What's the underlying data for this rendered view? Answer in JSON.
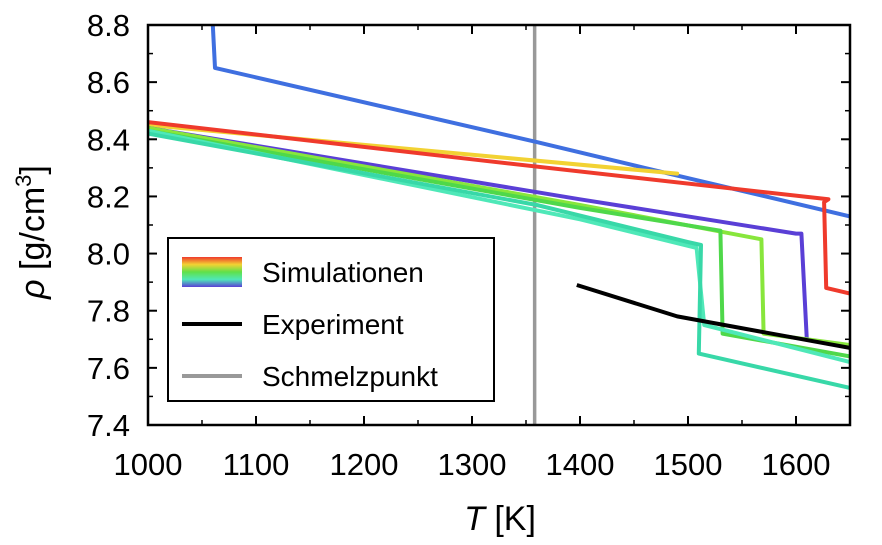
{
  "chart_data": {
    "type": "line",
    "xlabel": {
      "symbol": "T",
      "unit": "[K]"
    },
    "ylabel": {
      "symbol": "ρ",
      "unit_before": "[g/cm",
      "unit_sup": "3",
      "unit_after": "]"
    },
    "xlim": [
      1000,
      1650
    ],
    "ylim": [
      7.4,
      8.8
    ],
    "xticks": [
      1000,
      1100,
      1200,
      1300,
      1400,
      1500,
      1600
    ],
    "yticks": [
      7.4,
      7.6,
      7.8,
      8.0,
      8.2,
      8.4,
      8.6,
      8.8
    ],
    "xtick_labels": [
      "1000",
      "1100",
      "1200",
      "1300",
      "1400",
      "1500",
      "1600"
    ],
    "ytick_labels": [
      "7.4",
      "7.6",
      "7.8",
      "8.0",
      "8.2",
      "8.4",
      "8.6",
      "8.8"
    ],
    "grid": false,
    "legend_position": "bottom-left",
    "legend": [
      {
        "label": "Simulationen",
        "kind": "rainbow"
      },
      {
        "label": "Experiment",
        "kind": "line",
        "color": "#000000"
      },
      {
        "label": "Schmelzpunkt",
        "kind": "line",
        "color": "#999999"
      }
    ],
    "melting_point": {
      "x": 1358,
      "color": "#999999"
    },
    "experiment": {
      "color": "#000000",
      "points": [
        [
          1397,
          7.89
        ],
        [
          1490,
          7.78
        ],
        [
          1650,
          7.67
        ]
      ]
    },
    "simulations": [
      {
        "color": "#3f6fe0",
        "points": [
          [
            1060,
            8.8
          ],
          [
            1062,
            8.65
          ],
          [
            1360,
            8.39
          ],
          [
            1460,
            8.3
          ],
          [
            1650,
            8.13
          ]
        ]
      },
      {
        "color": "#f2d233",
        "points": [
          [
            1000,
            8.45
          ],
          [
            1490,
            8.28
          ]
        ]
      },
      {
        "color": "#ef3a2c",
        "points": [
          [
            1000,
            8.46
          ],
          [
            1300,
            8.33
          ],
          [
            1630,
            8.19
          ],
          [
            1626,
            8.18
          ],
          [
            1628,
            7.88
          ],
          [
            1650,
            7.86
          ]
        ]
      },
      {
        "color": "#5a3fd6",
        "points": [
          [
            1000,
            8.44
          ],
          [
            1400,
            8.19
          ],
          [
            1600,
            8.07
          ],
          [
            1605,
            8.07
          ],
          [
            1610,
            7.7
          ]
        ]
      },
      {
        "color": "#88e63c",
        "points": [
          [
            1000,
            8.44
          ],
          [
            1400,
            8.17
          ],
          [
            1568,
            8.05
          ],
          [
            1570,
            7.72
          ],
          [
            1650,
            7.68
          ]
        ]
      },
      {
        "color": "#4fd84a",
        "points": [
          [
            1000,
            8.43
          ],
          [
            1400,
            8.16
          ],
          [
            1530,
            8.08
          ],
          [
            1532,
            7.72
          ],
          [
            1650,
            7.64
          ]
        ]
      },
      {
        "color": "#4fe8b8",
        "points": [
          [
            1000,
            8.43
          ],
          [
            1400,
            8.12
          ],
          [
            1508,
            8.02
          ],
          [
            1515,
            7.75
          ],
          [
            1650,
            7.62
          ]
        ]
      },
      {
        "color": "#38d8a8",
        "points": [
          [
            1000,
            8.42
          ],
          [
            1360,
            8.17
          ],
          [
            1500,
            8.04
          ],
          [
            1512,
            8.03
          ],
          [
            1510,
            7.65
          ],
          [
            1650,
            7.53
          ]
        ]
      }
    ]
  }
}
